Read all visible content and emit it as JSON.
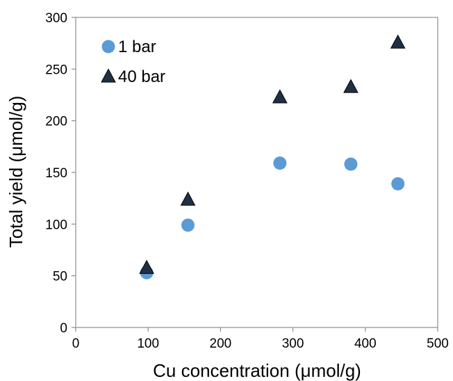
{
  "chart_data": {
    "type": "scatter",
    "title": "",
    "xlabel": "Cu concentration (μmol/g)",
    "ylabel": "Total yield (μmol/g)",
    "xlim": [
      0,
      500
    ],
    "ylim": [
      0,
      300
    ],
    "xticks": [
      0,
      100,
      200,
      300,
      400,
      500
    ],
    "yticks": [
      0,
      50,
      100,
      150,
      200,
      250,
      300
    ],
    "grid": false,
    "legend_position": "top-left",
    "series": [
      {
        "name": "1 bar",
        "marker": "circle",
        "color": "#5B9BD5",
        "x": [
          98,
          155,
          282,
          380,
          445
        ],
        "y": [
          53,
          99,
          159,
          158,
          139
        ]
      },
      {
        "name": "40 bar",
        "marker": "triangle",
        "color": "#1F3045",
        "x": [
          98,
          155,
          282,
          380,
          445
        ],
        "y": [
          57,
          123,
          222,
          232,
          275
        ]
      }
    ]
  }
}
